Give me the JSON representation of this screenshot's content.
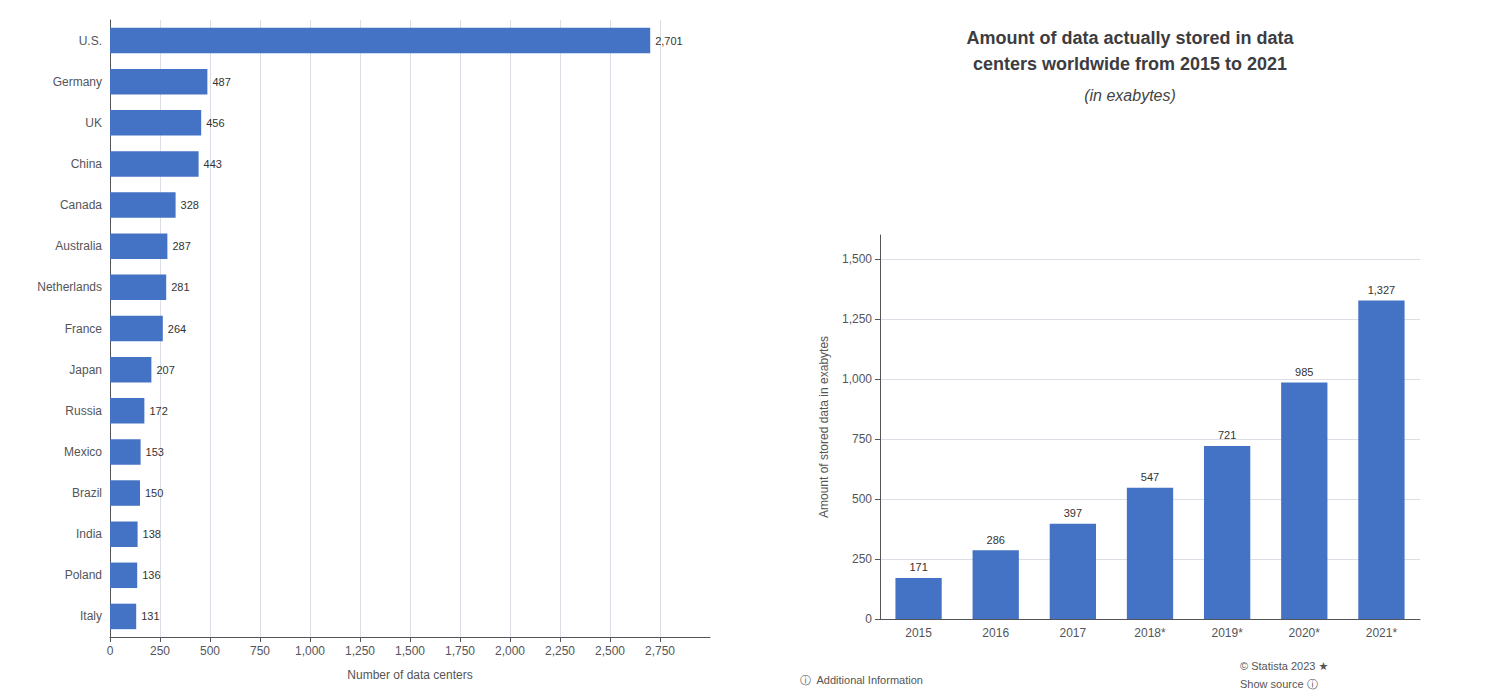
{
  "chart_data": [
    {
      "type": "bar",
      "orientation": "horizontal",
      "categories": [
        "U.S.",
        "Germany",
        "UK",
        "China",
        "Canada",
        "Australia",
        "Netherlands",
        "France",
        "Japan",
        "Russia",
        "Mexico",
        "Brazil",
        "India",
        "Poland",
        "Italy"
      ],
      "values": [
        2701,
        487,
        456,
        443,
        328,
        287,
        281,
        264,
        207,
        172,
        153,
        150,
        138,
        136,
        131
      ],
      "value_labels": [
        "2,701",
        "487",
        "456",
        "443",
        "328",
        "287",
        "281",
        "264",
        "207",
        "172",
        "153",
        "150",
        "138",
        "136",
        "131"
      ],
      "data_labels": true,
      "color": "#4472c4",
      "xlabel": "Number of data centers",
      "xlim": [
        0,
        3000
      ],
      "xticks": [
        0,
        250,
        500,
        750,
        {
          "value": 1000,
          "label": "1,000"
        },
        {
          "value": 1250,
          "label": "1,250"
        },
        {
          "value": 1500,
          "label": "1,500"
        },
        {
          "value": 1750,
          "label": "1,750"
        },
        {
          "value": 2000,
          "label": "2,000"
        },
        {
          "value": 2250,
          "label": "2,250"
        },
        {
          "value": 2500,
          "label": "2,500"
        },
        {
          "value": 2750,
          "label": "2,750"
        }
      ],
      "grid": true
    },
    {
      "type": "bar",
      "title": "Amount of data actually stored in data\ncenters worldwide from 2015 to 2021",
      "subtitle": "(in exabytes)",
      "categories": [
        "2015",
        "2016",
        "2017",
        "2018*",
        "2019*",
        "2020*",
        "2021*"
      ],
      "values": [
        171,
        286,
        397,
        547,
        721,
        985,
        1327
      ],
      "value_labels": [
        "171",
        "286",
        "397",
        "547",
        "721",
        "985",
        "1,327"
      ],
      "data_labels": true,
      "color": "#4472c4",
      "ylabel": "Amount of stored data in exabytes",
      "ylim": [
        0,
        1600
      ],
      "yticks": [
        0,
        250,
        500,
        750,
        {
          "value": 1000,
          "label": "1,000"
        },
        {
          "value": 1250,
          "label": "1,250"
        },
        {
          "value": 1500,
          "label": "1,500"
        }
      ],
      "grid": true,
      "annotations": [
        "ⓘ  Additional Information",
        "© Statista 2023 ★",
        "Show source ⓘ"
      ]
    }
  ]
}
